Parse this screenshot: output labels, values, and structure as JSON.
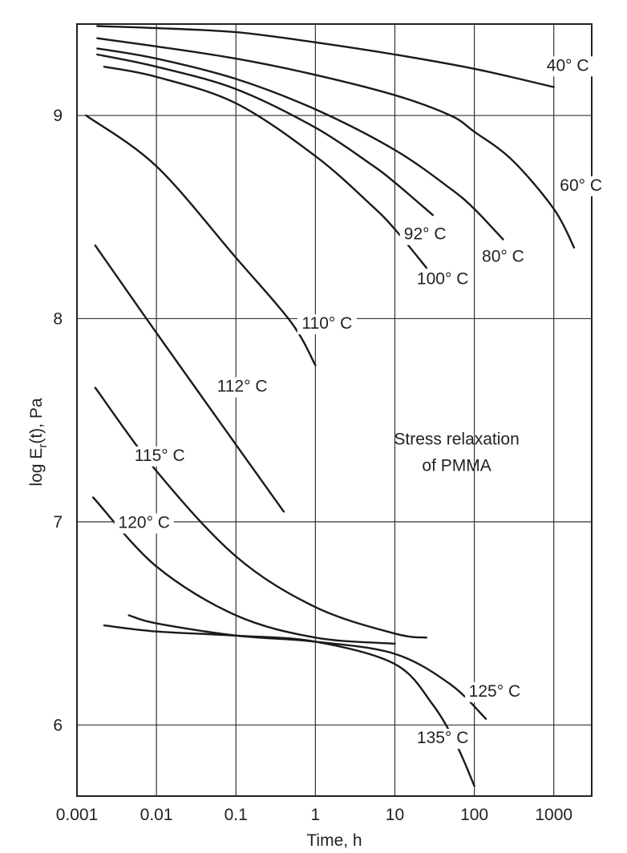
{
  "chart_data": {
    "type": "line",
    "title": "",
    "xlabel": "Time, h",
    "ylabel": "log E_r(t), Pa",
    "ylabel_main": "log E",
    "ylabel_sub": "r",
    "ylabel_rest": "(t), Pa",
    "x_scale": "log",
    "xlim": [
      0.001,
      3000
    ],
    "ylim": [
      5.65,
      9.45
    ],
    "grid": true,
    "legend": "none",
    "x_ticks": [
      {
        "value": 0.001,
        "label": "0.001"
      },
      {
        "value": 0.01,
        "label": "0.01"
      },
      {
        "value": 0.1,
        "label": "0.1"
      },
      {
        "value": 1,
        "label": "1"
      },
      {
        "value": 10,
        "label": "10"
      },
      {
        "value": 100,
        "label": "100"
      },
      {
        "value": 1000,
        "label": "1000"
      }
    ],
    "y_ticks": [
      {
        "value": 6,
        "label": "6"
      },
      {
        "value": 7,
        "label": "7"
      },
      {
        "value": 8,
        "label": "8"
      },
      {
        "value": 9,
        "label": "9"
      }
    ],
    "annotation": {
      "line1": "Stress relaxation",
      "line2": "of PMMA",
      "x": 60,
      "y1": 7.38,
      "y2": 7.25
    },
    "series": [
      {
        "name": "40° C",
        "label_at": [
          1500,
          9.22
        ],
        "x": [
          0.0018,
          0.01,
          0.1,
          1,
          10,
          100,
          1000
        ],
        "y": [
          9.44,
          9.43,
          9.41,
          9.36,
          9.3,
          9.23,
          9.14
        ]
      },
      {
        "name": "60° C",
        "label_at": [
          2200,
          8.63
        ],
        "x": [
          0.0018,
          0.01,
          0.1,
          1,
          10,
          50,
          100,
          300,
          1000,
          1800
        ],
        "y": [
          9.38,
          9.34,
          9.28,
          9.2,
          9.1,
          9.0,
          8.92,
          8.78,
          8.54,
          8.35
        ]
      },
      {
        "name": "80° C",
        "label_at": [
          230,
          8.28
        ],
        "x": [
          0.0018,
          0.01,
          0.1,
          1,
          10,
          50,
          100,
          230
        ],
        "y": [
          9.33,
          9.28,
          9.18,
          9.03,
          8.83,
          8.64,
          8.54,
          8.39
        ]
      },
      {
        "name": "92° C",
        "label_at": [
          24,
          8.39
        ],
        "x": [
          0.0018,
          0.01,
          0.1,
          1,
          5,
          10,
          30
        ],
        "y": [
          9.3,
          9.24,
          9.13,
          8.94,
          8.76,
          8.67,
          8.51
        ]
      },
      {
        "name": "100° C",
        "label_at": [
          40,
          8.17
        ],
        "x": [
          0.0022,
          0.01,
          0.1,
          1,
          5,
          10,
          25
        ],
        "y": [
          9.24,
          9.19,
          9.06,
          8.8,
          8.56,
          8.44,
          8.25
        ]
      },
      {
        "name": "110° C",
        "label_at": [
          1.4,
          7.95
        ],
        "x": [
          0.0013,
          0.01,
          0.1,
          0.5,
          1
        ],
        "y": [
          9.0,
          8.75,
          8.3,
          7.98,
          7.77
        ]
      },
      {
        "name": "112° C",
        "label_at": [
          0.12,
          7.64
        ],
        "x": [
          0.0017,
          0.01,
          0.1,
          0.4
        ],
        "y": [
          8.36,
          7.93,
          7.38,
          7.05
        ]
      },
      {
        "name": "115° C",
        "label_at": [
          0.011,
          7.3
        ],
        "x": [
          0.0017,
          0.01,
          0.1,
          1,
          10,
          25
        ],
        "y": [
          7.66,
          7.25,
          6.83,
          6.58,
          6.45,
          6.43
        ]
      },
      {
        "name": "120° C",
        "label_at": [
          0.007,
          6.97
        ],
        "x": [
          0.0016,
          0.01,
          0.1,
          1,
          10
        ],
        "y": [
          7.12,
          6.78,
          6.54,
          6.43,
          6.4
        ]
      },
      {
        "name": "125° C",
        "label_at": [
          180,
          6.14
        ],
        "x": [
          0.0045,
          0.01,
          0.1,
          1,
          10,
          50,
          140
        ],
        "y": [
          6.54,
          6.5,
          6.44,
          6.41,
          6.35,
          6.2,
          6.03
        ]
      },
      {
        "name": "135° C",
        "label_at": [
          40,
          5.91
        ],
        "x": [
          0.0022,
          0.01,
          0.1,
          1,
          10,
          30,
          60,
          100
        ],
        "y": [
          6.49,
          6.46,
          6.44,
          6.41,
          6.3,
          6.1,
          5.9,
          5.7
        ]
      }
    ]
  }
}
